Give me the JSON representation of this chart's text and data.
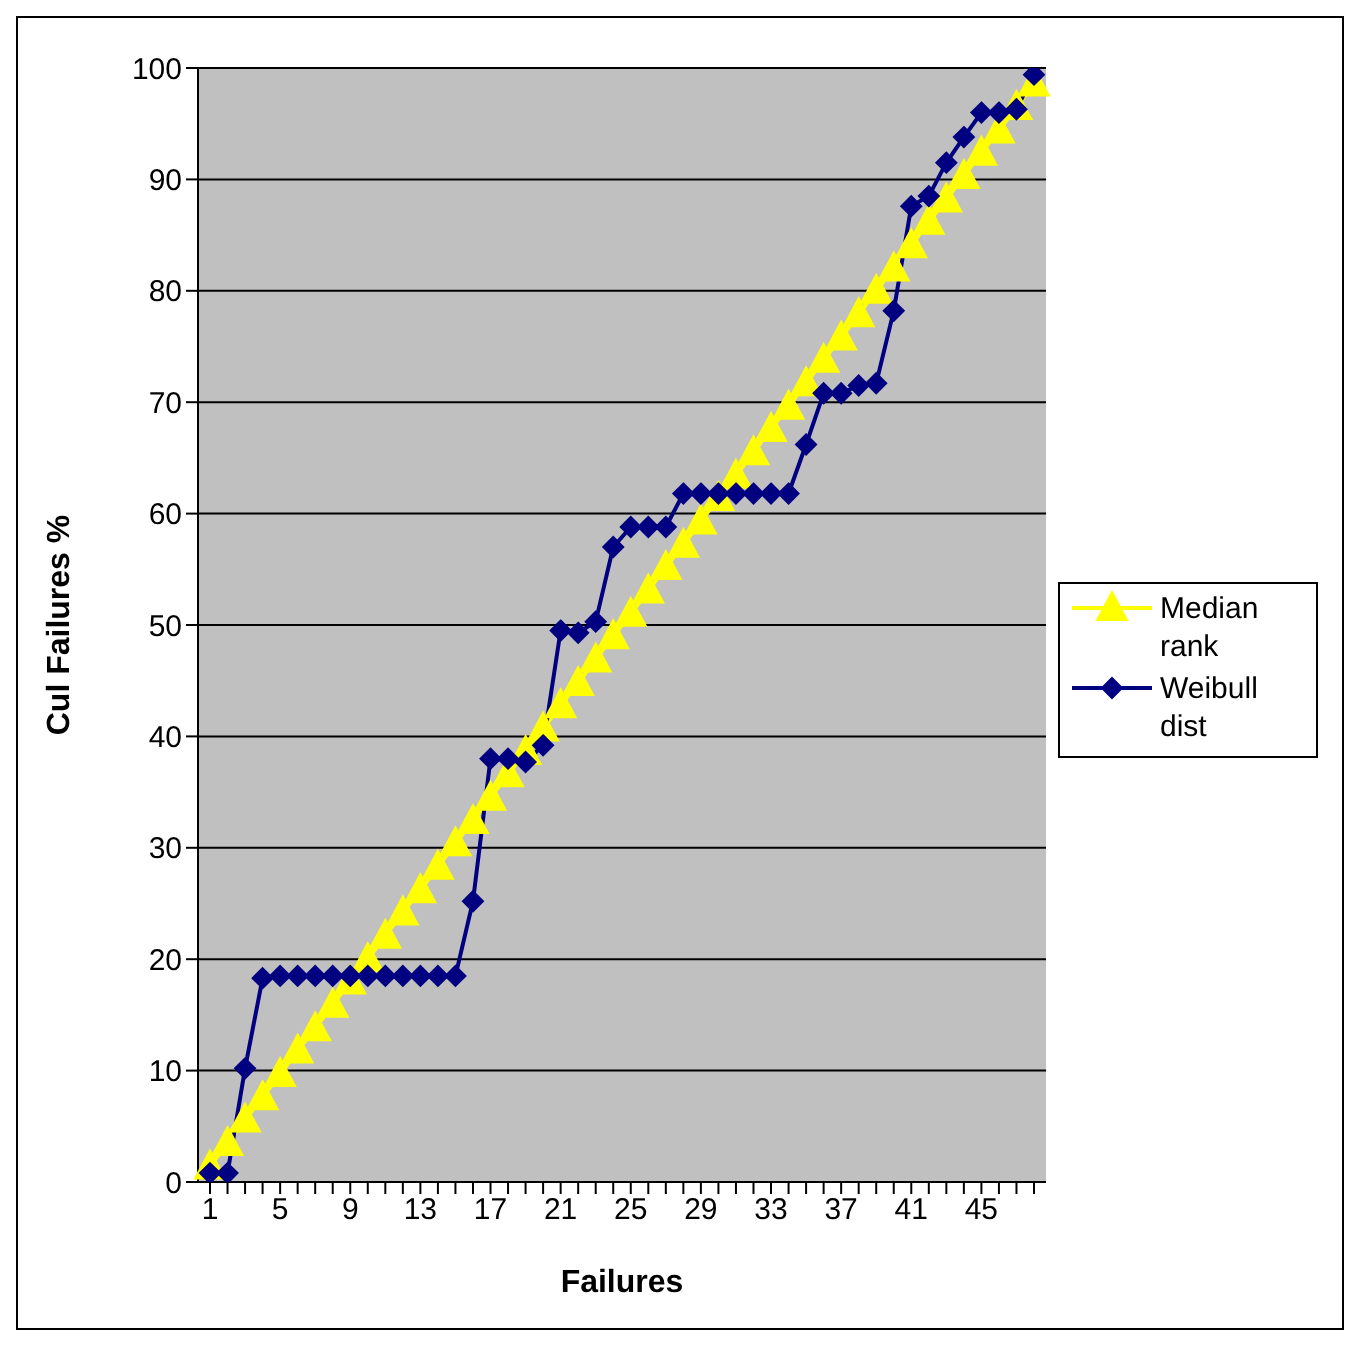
{
  "chart_data": {
    "type": "line",
    "xlabel": "Failures",
    "ylabel": "Cul Failures %",
    "categories": [
      "1",
      null,
      null,
      null,
      "5",
      null,
      null,
      null,
      "9",
      null,
      null,
      null,
      "13",
      null,
      null,
      null,
      "17",
      null,
      null,
      null,
      "21",
      null,
      null,
      null,
      "25",
      null,
      null,
      null,
      "29",
      null,
      null,
      null,
      "33",
      null,
      null,
      null,
      "37",
      null,
      null,
      null,
      "41",
      null,
      null,
      null,
      "45",
      null,
      null,
      null
    ],
    "series": [
      {
        "name": "Median rank",
        "color": "#ffff00",
        "marker": "triangle",
        "values": [
          1.4,
          3.5,
          5.6,
          7.6,
          9.7,
          11.8,
          13.8,
          15.9,
          18.0,
          20.0,
          22.1,
          24.2,
          26.2,
          28.3,
          30.4,
          32.4,
          34.5,
          36.6,
          38.6,
          40.7,
          42.8,
          44.8,
          46.9,
          49.0,
          51.0,
          53.1,
          55.2,
          57.2,
          59.3,
          61.4,
          63.4,
          65.5,
          67.6,
          69.6,
          71.7,
          73.8,
          75.8,
          77.9,
          80.0,
          82.0,
          84.1,
          86.2,
          88.2,
          90.3,
          92.4,
          94.4,
          96.5,
          98.6
        ]
      },
      {
        "name": "Weibull dist",
        "color": "#000080",
        "marker": "diamond",
        "values": [
          0.8,
          0.8,
          10.2,
          18.3,
          18.5,
          18.5,
          18.5,
          18.5,
          18.5,
          18.5,
          18.5,
          18.5,
          18.5,
          18.5,
          18.5,
          25.2,
          38,
          38,
          37.7,
          39.2,
          49.5,
          49.3,
          50.3,
          57,
          58.8,
          58.8,
          58.8,
          61.8,
          61.8,
          61.8,
          61.8,
          61.8,
          61.8,
          61.8,
          66.2,
          70.8,
          70.8,
          71.5,
          71.7,
          78.2,
          87.6,
          88.5,
          91.5,
          93.8,
          96,
          96,
          96.3,
          99.4
        ]
      }
    ],
    "ylim": [
      0,
      100
    ],
    "yticks": [
      0,
      10,
      20,
      30,
      40,
      50,
      60,
      70,
      80,
      90,
      100
    ],
    "grid": "y",
    "legend": "right",
    "line_style": "solid"
  }
}
